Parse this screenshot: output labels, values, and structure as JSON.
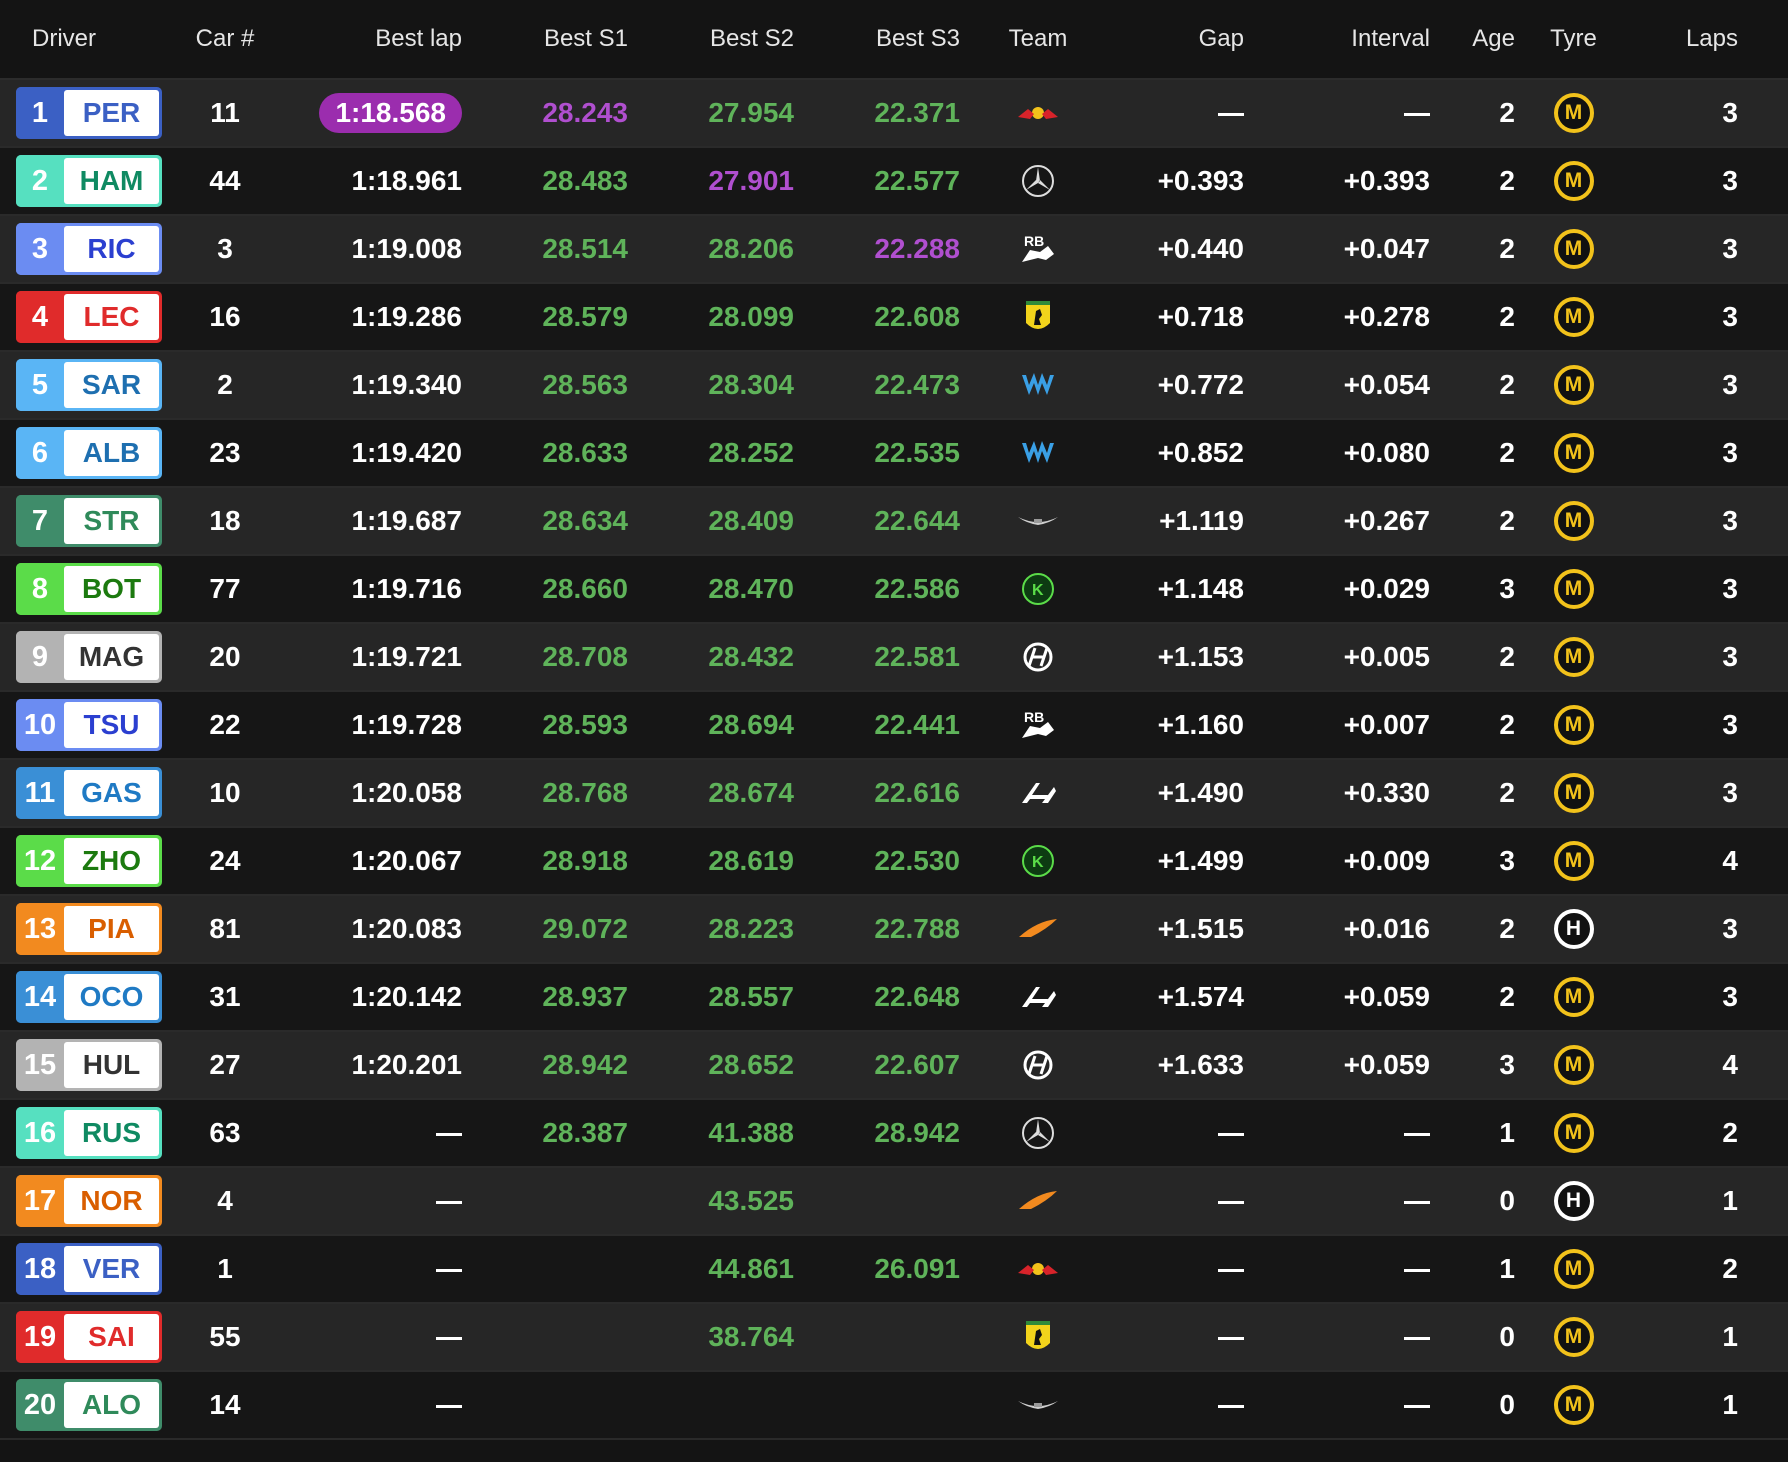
{
  "headers": {
    "driver": "Driver",
    "car": "Car #",
    "best_lap": "Best lap",
    "best_s1": "Best S1",
    "best_s2": "Best S2",
    "best_s3": "Best S3",
    "team": "Team",
    "gap": "Gap",
    "interval": "Interval",
    "age": "Age",
    "tyre": "Tyre",
    "laps": "Laps"
  },
  "team_colors": {
    "redbull": "#3b60c4",
    "mercedes": "#56e0c0",
    "rb": "#6b8cf2",
    "ferrari": "#e02b2b",
    "williams": "#5ab5f5",
    "astonmartin": "#3f8c6a",
    "sauber": "#5bdc49",
    "haas": "#b3b3b3",
    "alpine": "#3a8fd6",
    "mclaren": "#f28a1f"
  },
  "team_text_colors": {
    "redbull": "#3b60c4",
    "mercedes": "#0f8a62",
    "rb": "#2b3fd0",
    "ferrari": "#e02b2b",
    "williams": "#1e6fb0",
    "astonmartin": "#2f8a5a",
    "sauber": "#1c7a0f",
    "haas": "#333333",
    "alpine": "#1f7ac4",
    "mclaren": "#d95e00"
  },
  "team_icons": {
    "redbull": "red-bull-logo-icon",
    "mercedes": "mercedes-star-icon",
    "rb": "racing-bulls-logo-icon",
    "ferrari": "ferrari-horse-icon",
    "williams": "williams-logo-icon",
    "astonmartin": "aston-martin-wings-icon",
    "sauber": "kick-sauber-logo-icon",
    "haas": "haas-logo-icon",
    "alpine": "alpine-logo-icon",
    "mclaren": "mclaren-swoosh-icon"
  },
  "tyre_colors": {
    "M": "#f2c21b",
    "H": "#ffffff"
  },
  "rows": [
    {
      "pos": "1",
      "code": "PER",
      "team": "redbull",
      "car": "11",
      "best_lap": "1:18.568",
      "best_lap_fastest": true,
      "s1": "28.243",
      "s1_purple": true,
      "s2": "27.954",
      "s2_purple": false,
      "s3": "22.371",
      "s3_purple": false,
      "gap": "",
      "interval": "",
      "age": "2",
      "tyre": "M",
      "laps": "3"
    },
    {
      "pos": "2",
      "code": "HAM",
      "team": "mercedes",
      "car": "44",
      "best_lap": "1:18.961",
      "s1": "28.483",
      "s2": "27.901",
      "s2_purple": true,
      "s3": "22.577",
      "gap": "+0.393",
      "interval": "+0.393",
      "age": "2",
      "tyre": "M",
      "laps": "3"
    },
    {
      "pos": "3",
      "code": "RIC",
      "team": "rb",
      "car": "3",
      "best_lap": "1:19.008",
      "s1": "28.514",
      "s2": "28.206",
      "s3": "22.288",
      "s3_purple": true,
      "gap": "+0.440",
      "interval": "+0.047",
      "age": "2",
      "tyre": "M",
      "laps": "3"
    },
    {
      "pos": "4",
      "code": "LEC",
      "team": "ferrari",
      "car": "16",
      "best_lap": "1:19.286",
      "s1": "28.579",
      "s2": "28.099",
      "s3": "22.608",
      "gap": "+0.718",
      "interval": "+0.278",
      "age": "2",
      "tyre": "M",
      "laps": "3"
    },
    {
      "pos": "5",
      "code": "SAR",
      "team": "williams",
      "car": "2",
      "best_lap": "1:19.340",
      "s1": "28.563",
      "s2": "28.304",
      "s3": "22.473",
      "gap": "+0.772",
      "interval": "+0.054",
      "age": "2",
      "tyre": "M",
      "laps": "3"
    },
    {
      "pos": "6",
      "code": "ALB",
      "team": "williams",
      "car": "23",
      "best_lap": "1:19.420",
      "s1": "28.633",
      "s2": "28.252",
      "s3": "22.535",
      "gap": "+0.852",
      "interval": "+0.080",
      "age": "2",
      "tyre": "M",
      "laps": "3"
    },
    {
      "pos": "7",
      "code": "STR",
      "team": "astonmartin",
      "car": "18",
      "best_lap": "1:19.687",
      "s1": "28.634",
      "s2": "28.409",
      "s3": "22.644",
      "gap": "+1.119",
      "interval": "+0.267",
      "age": "2",
      "tyre": "M",
      "laps": "3"
    },
    {
      "pos": "8",
      "code": "BOT",
      "team": "sauber",
      "car": "77",
      "best_lap": "1:19.716",
      "s1": "28.660",
      "s2": "28.470",
      "s3": "22.586",
      "gap": "+1.148",
      "interval": "+0.029",
      "age": "3",
      "tyre": "M",
      "laps": "3"
    },
    {
      "pos": "9",
      "code": "MAG",
      "team": "haas",
      "car": "20",
      "best_lap": "1:19.721",
      "s1": "28.708",
      "s2": "28.432",
      "s3": "22.581",
      "gap": "+1.153",
      "interval": "+0.005",
      "age": "2",
      "tyre": "M",
      "laps": "3"
    },
    {
      "pos": "10",
      "code": "TSU",
      "team": "rb",
      "car": "22",
      "best_lap": "1:19.728",
      "s1": "28.593",
      "s2": "28.694",
      "s3": "22.441",
      "gap": "+1.160",
      "interval": "+0.007",
      "age": "2",
      "tyre": "M",
      "laps": "3"
    },
    {
      "pos": "11",
      "code": "GAS",
      "team": "alpine",
      "car": "10",
      "best_lap": "1:20.058",
      "s1": "28.768",
      "s2": "28.674",
      "s3": "22.616",
      "gap": "+1.490",
      "interval": "+0.330",
      "age": "2",
      "tyre": "M",
      "laps": "3"
    },
    {
      "pos": "12",
      "code": "ZHO",
      "team": "sauber",
      "car": "24",
      "best_lap": "1:20.067",
      "s1": "28.918",
      "s2": "28.619",
      "s3": "22.530",
      "gap": "+1.499",
      "interval": "+0.009",
      "age": "3",
      "tyre": "M",
      "laps": "4"
    },
    {
      "pos": "13",
      "code": "PIA",
      "team": "mclaren",
      "car": "81",
      "best_lap": "1:20.083",
      "s1": "29.072",
      "s2": "28.223",
      "s3": "22.788",
      "gap": "+1.515",
      "interval": "+0.016",
      "age": "2",
      "tyre": "H",
      "laps": "3"
    },
    {
      "pos": "14",
      "code": "OCO",
      "team": "alpine",
      "car": "31",
      "best_lap": "1:20.142",
      "s1": "28.937",
      "s2": "28.557",
      "s3": "22.648",
      "gap": "+1.574",
      "interval": "+0.059",
      "age": "2",
      "tyre": "M",
      "laps": "3"
    },
    {
      "pos": "15",
      "code": "HUL",
      "team": "haas",
      "car": "27",
      "best_lap": "1:20.201",
      "s1": "28.942",
      "s2": "28.652",
      "s3": "22.607",
      "gap": "+1.633",
      "interval": "+0.059",
      "age": "3",
      "tyre": "M",
      "laps": "4"
    },
    {
      "pos": "16",
      "code": "RUS",
      "team": "mercedes",
      "car": "63",
      "best_lap": "",
      "s1": "28.387",
      "s2": "41.388",
      "s3": "28.942",
      "gap": "",
      "interval": "",
      "age": "1",
      "tyre": "M",
      "laps": "2"
    },
    {
      "pos": "17",
      "code": "NOR",
      "team": "mclaren",
      "car": "4",
      "best_lap": "",
      "s1": "",
      "s2": "43.525",
      "s3": "",
      "gap": "",
      "interval": "",
      "age": "0",
      "tyre": "H",
      "laps": "1"
    },
    {
      "pos": "18",
      "code": "VER",
      "team": "redbull",
      "car": "1",
      "best_lap": "",
      "s1": "",
      "s2": "44.861",
      "s3": "26.091",
      "gap": "",
      "interval": "",
      "age": "1",
      "tyre": "M",
      "laps": "2"
    },
    {
      "pos": "19",
      "code": "SAI",
      "team": "ferrari",
      "car": "55",
      "best_lap": "",
      "s1": "",
      "s2": "38.764",
      "s3": "",
      "gap": "",
      "interval": "",
      "age": "0",
      "tyre": "M",
      "laps": "1"
    },
    {
      "pos": "20",
      "code": "ALO",
      "team": "astonmartin",
      "car": "14",
      "best_lap": "",
      "s1": "",
      "s2": "",
      "s3": "",
      "gap": "",
      "interval": "",
      "age": "0",
      "tyre": "M",
      "laps": "1"
    }
  ]
}
